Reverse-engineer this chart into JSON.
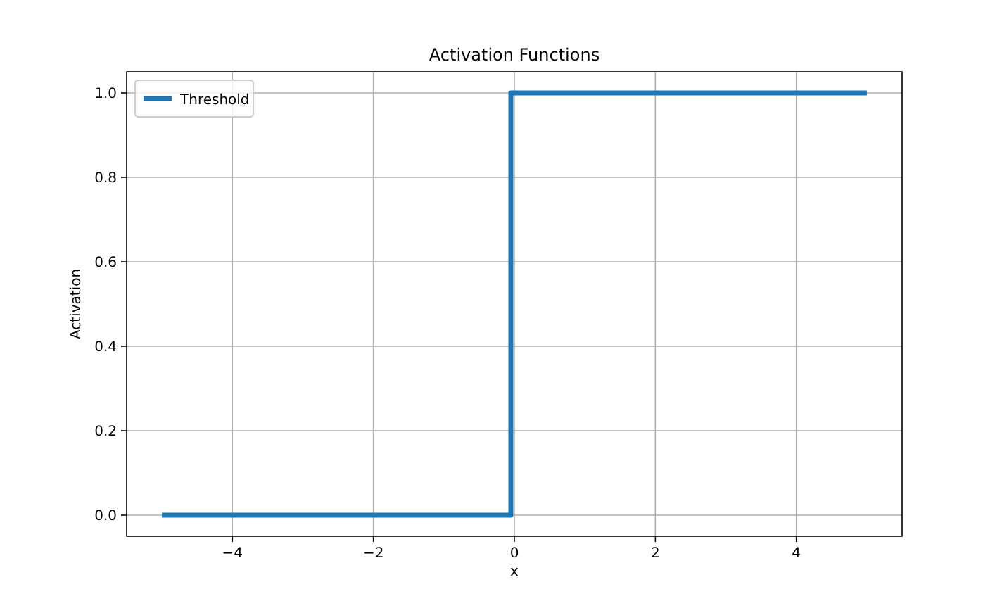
{
  "chart_data": {
    "type": "line",
    "title": "Activation Functions",
    "xlabel": "x",
    "ylabel": "Activation",
    "xlim": [
      -5.5,
      5.5
    ],
    "xticks": [
      {
        "value": -4,
        "label": "−4"
      },
      {
        "value": -2,
        "label": "−2"
      },
      0,
      2,
      4
    ],
    "ylim": [
      -0.05,
      1.05
    ],
    "yticks": [
      {
        "value": 0,
        "label": "0.0"
      },
      {
        "value": 0.2,
        "label": "0.2"
      },
      {
        "value": 0.4,
        "label": "0.4"
      },
      {
        "value": 0.6,
        "label": "0.6"
      },
      {
        "value": 0.8,
        "label": "0.8"
      },
      {
        "value": 1,
        "label": "1.0"
      }
    ],
    "grid": true,
    "legend": "top left",
    "series": [
      {
        "name": "Threshold",
        "color": "#1f77b4",
        "x": [
          -5,
          -0.05,
          -0.05,
          5
        ],
        "values": [
          0,
          0,
          1,
          1
        ]
      }
    ]
  }
}
